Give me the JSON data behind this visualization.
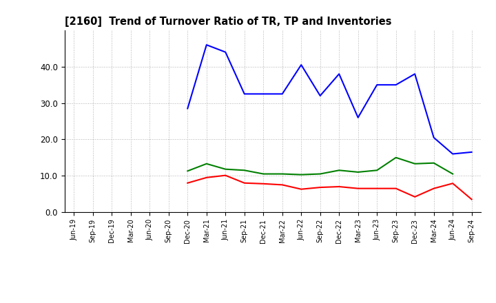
{
  "title": "[2160]  Trend of Turnover Ratio of TR, TP and Inventories",
  "xlabels": [
    "Jun-19",
    "Sep-19",
    "Dec-19",
    "Mar-20",
    "Jun-20",
    "Sep-20",
    "Dec-20",
    "Mar-21",
    "Jun-21",
    "Sep-21",
    "Dec-21",
    "Mar-22",
    "Jun-22",
    "Sep-22",
    "Dec-22",
    "Mar-23",
    "Jun-23",
    "Sep-23",
    "Dec-23",
    "Mar-24",
    "Jun-24",
    "Sep-24"
  ],
  "trade_receivables": [
    null,
    null,
    null,
    null,
    null,
    null,
    8.0,
    9.5,
    10.1,
    8.0,
    7.8,
    7.5,
    6.3,
    6.8,
    7.0,
    6.5,
    6.5,
    6.5,
    4.2,
    6.5,
    7.9,
    3.5
  ],
  "trade_payables": [
    null,
    null,
    null,
    null,
    null,
    null,
    28.5,
    46.0,
    44.0,
    32.5,
    32.5,
    32.5,
    40.5,
    32.0,
    38.0,
    26.0,
    35.0,
    35.0,
    38.0,
    20.5,
    16.0,
    16.5
  ],
  "inventories": [
    null,
    null,
    null,
    null,
    null,
    null,
    11.3,
    13.3,
    11.8,
    11.5,
    10.5,
    10.5,
    10.3,
    10.5,
    11.5,
    11.0,
    11.5,
    15.0,
    13.3,
    13.5,
    10.5,
    null
  ],
  "tr_color": "#ff0000",
  "tp_color": "#0000ff",
  "inv_color": "#008000",
  "ylim": [
    0,
    50
  ],
  "yticks": [
    0.0,
    10.0,
    20.0,
    30.0,
    40.0
  ],
  "background_color": "#ffffff",
  "grid_color": "#b0b0b0"
}
